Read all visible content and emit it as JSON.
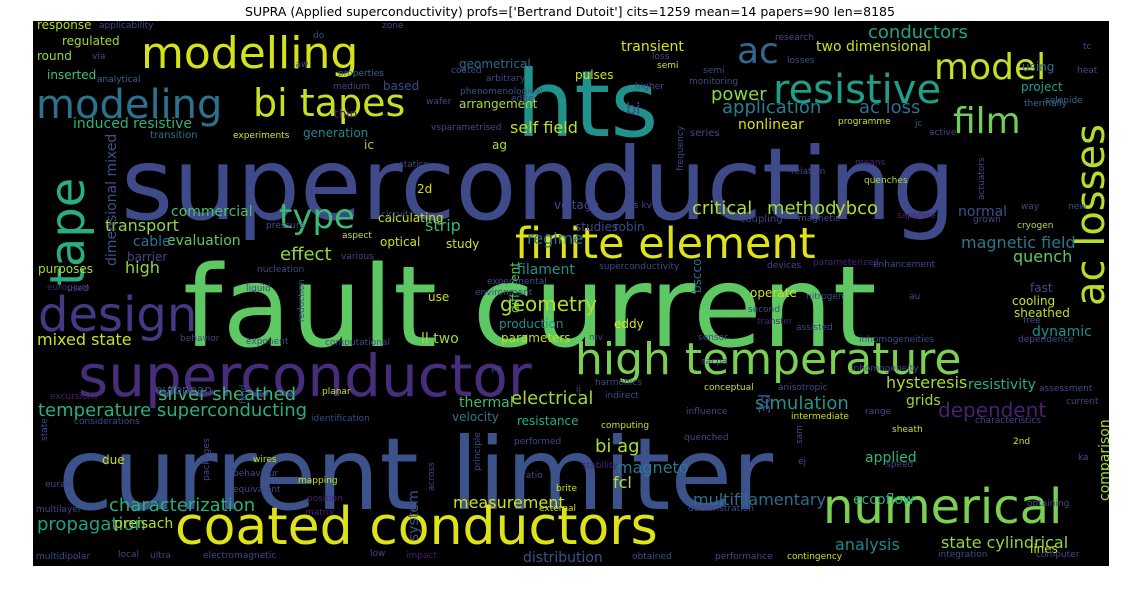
{
  "title": "SUPRA (Applied superconductivity) profs=['Bertrand Dutoit'] cits=1259 mean=14 papers=90 len=8185",
  "words": [
    {
      "text": "current limiter",
      "color": "#3b528b"
    },
    {
      "text": "fault current",
      "color": "#5ec962"
    },
    {
      "text": "superconducting",
      "color": "#3e4a89"
    },
    {
      "text": "hts",
      "color": "#21918c"
    },
    {
      "text": "coated conductors",
      "color": "#dde318"
    },
    {
      "text": "superconductor",
      "color": "#472d7b"
    },
    {
      "text": "high temperature",
      "color": "#7ad151"
    },
    {
      "text": "modelling",
      "color": "#d5e21a"
    },
    {
      "text": "resistive",
      "color": "#1f9e89"
    },
    {
      "text": "finite element",
      "color": "#dde318"
    },
    {
      "text": "modeling",
      "color": "#2c728e"
    },
    {
      "text": "numerical",
      "color": "#7ad151"
    },
    {
      "text": "bi tapes",
      "color": "#c8e020"
    },
    {
      "text": "tape",
      "color": "#28ae80"
    },
    {
      "text": "design",
      "color": "#443983"
    },
    {
      "text": "ac losses",
      "color": "#b5de2b"
    },
    {
      "text": "model",
      "color": "#c2df23"
    },
    {
      "text": "film",
      "color": "#6ece58"
    },
    {
      "text": "ac",
      "color": "#31688e"
    },
    {
      "text": "type",
      "color": "#3bbb75"
    },
    {
      "text": "temperature superconducting",
      "color": "#29af7f"
    },
    {
      "text": "critical",
      "color": "#b5de2b"
    },
    {
      "text": "method",
      "color": "#9fda3a"
    },
    {
      "text": "ybco",
      "color": "#b8de29"
    },
    {
      "text": "effect",
      "color": "#90d743"
    },
    {
      "text": "magnetic field",
      "color": "#2a788e"
    },
    {
      "text": "simulation",
      "color": "#1f958b"
    },
    {
      "text": "dependent",
      "color": "#482173"
    },
    {
      "text": "application",
      "color": "#277f8e"
    },
    {
      "text": "ac loss",
      "color": "#2e6f8e"
    },
    {
      "text": "power",
      "color": "#8bd646"
    },
    {
      "text": "conductors",
      "color": "#21a685"
    },
    {
      "text": "geometry",
      "color": "#b2dd2d"
    },
    {
      "text": "electrical",
      "color": "#a0da39"
    },
    {
      "text": "characterization",
      "color": "#29af7f"
    },
    {
      "text": "propagation",
      "color": "#1fa088"
    },
    {
      "text": "coupling",
      "color": "#404688"
    },
    {
      "text": "hysteresis",
      "color": "#a8db34"
    },
    {
      "text": "silver sheathed",
      "color": "#37b878"
    },
    {
      "text": "state cylindrical",
      "color": "#8ed645"
    },
    {
      "text": "analysis",
      "color": "#24868e"
    },
    {
      "text": "magneto",
      "color": "#2a788e"
    },
    {
      "text": "bi ag",
      "color": "#aadc32"
    },
    {
      "text": "measurement",
      "color": "#d0e11c"
    },
    {
      "text": "multifilamentary",
      "color": "#2e6e8e"
    },
    {
      "text": "mixed state",
      "color": "#c5e021"
    },
    {
      "text": "eccoflow",
      "color": "#25ac82"
    },
    {
      "text": "comparison",
      "color": "#a8db34"
    },
    {
      "text": "self field",
      "color": "#c2df23"
    },
    {
      "text": "transport",
      "color": "#90d743"
    },
    {
      "text": "regime",
      "color": "#2c728e"
    },
    {
      "text": "strip",
      "color": "#35b779"
    },
    {
      "text": "quench",
      "color": "#5ec962"
    },
    {
      "text": "filament",
      "color": "#20928c"
    },
    {
      "text": "induced resistive",
      "color": "#2fb47c"
    },
    {
      "text": "two dimensional",
      "color": "#c5e021"
    },
    {
      "text": "nonlinear",
      "color": "#d8e219"
    },
    {
      "text": "resistivity",
      "color": "#2ab07f"
    },
    {
      "text": "dimensional mixed",
      "color": "#3b528b"
    },
    {
      "text": "high",
      "color": "#8ed645"
    },
    {
      "text": "commercial",
      "color": "#4ac16d"
    },
    {
      "text": "evaluation",
      "color": "#5ec962"
    },
    {
      "text": "cable",
      "color": "#2c728e"
    },
    {
      "text": "barrier",
      "color": "#3e4989"
    },
    {
      "text": "system",
      "color": "#3b528b"
    },
    {
      "text": "thermal",
      "color": "#3dbc74"
    },
    {
      "text": "fcl",
      "color": "#b5de2b"
    },
    {
      "text": "normal",
      "color": "#3b528b"
    },
    {
      "text": "grids",
      "color": "#9bd93c"
    },
    {
      "text": "bscco",
      "color": "#2d718e"
    },
    {
      "text": "different",
      "color": "#5ec962"
    },
    {
      "text": "applied",
      "color": "#2fb47c"
    },
    {
      "text": "dynamic",
      "color": "#21918c"
    },
    {
      "text": "sheathed",
      "color": "#c0df25"
    },
    {
      "text": "preisach",
      "color": "#b5de2b"
    },
    {
      "text": "transient",
      "color": "#d8e219"
    },
    {
      "text": "ll two",
      "color": "#9dd93b"
    },
    {
      "text": "velocity",
      "color": "#2a788e"
    },
    {
      "text": "resistance",
      "color": "#27ad81"
    },
    {
      "text": "distribution",
      "color": "#3b528b"
    },
    {
      "text": "analytical",
      "color": "#31688e"
    },
    {
      "text": "eddy",
      "color": "#dde318"
    },
    {
      "text": "production",
      "color": "#21918c"
    },
    {
      "text": "parameters",
      "color": "#bddf26"
    },
    {
      "text": "voltage",
      "color": "#3e4a89"
    },
    {
      "text": "calculating",
      "color": "#cae11f"
    },
    {
      "text": "response",
      "color": "#b5de2b"
    },
    {
      "text": "regulated",
      "color": "#a0da39"
    },
    {
      "text": "round",
      "color": "#95d840"
    },
    {
      "text": "inserted",
      "color": "#44bf70"
    },
    {
      "text": "geometrical",
      "color": "#31688e"
    },
    {
      "text": "arbitrary",
      "color": "#3e4a89"
    },
    {
      "text": "phenomenological",
      "color": "#3b528b"
    },
    {
      "text": "pulses",
      "color": "#d0e11c"
    },
    {
      "text": "arrangement",
      "color": "#a8db34"
    },
    {
      "text": "properties",
      "color": "#31688e"
    },
    {
      "text": "based",
      "color": "#3e4a89"
    },
    {
      "text": "medium",
      "color": "#404688"
    },
    {
      "text": "wafer",
      "color": "#3e4a89"
    },
    {
      "text": "edge",
      "color": "#3e4a89"
    },
    {
      "text": "thin",
      "color": "#481f70"
    },
    {
      "text": "transition",
      "color": "#2c728e"
    },
    {
      "text": "experiments",
      "color": "#d8e219"
    },
    {
      "text": "generation",
      "color": "#25858e"
    },
    {
      "text": "ic",
      "color": "#a8db34"
    },
    {
      "text": "2d",
      "color": "#c8e020"
    },
    {
      "text": "ag",
      "color": "#aadc32"
    },
    {
      "text": "series",
      "color": "#3e4a89"
    },
    {
      "text": "vsparametrised",
      "color": "#3e4a89"
    },
    {
      "text": "higher",
      "color": "#3e4a89"
    },
    {
      "text": "semi",
      "color": "#d8e219"
    },
    {
      "text": "loss",
      "color": "#3e4a89"
    },
    {
      "text": "bi",
      "color": "#3e4a89"
    },
    {
      "text": "monitoring",
      "color": "#3e4a89"
    },
    {
      "text": "research",
      "color": "#3e4a89"
    },
    {
      "text": "losses",
      "color": "#3e4a89"
    },
    {
      "text": "programme",
      "color": "#c8e020"
    },
    {
      "text": "jc",
      "color": "#3e4a89"
    },
    {
      "text": "using",
      "color": "#2c728e"
    },
    {
      "text": "project",
      "color": "#1f9e89"
    },
    {
      "text": "thermally",
      "color": "#31688e"
    },
    {
      "text": "selenide",
      "color": "#31688e"
    },
    {
      "text": "heat",
      "color": "#3e4a89"
    },
    {
      "text": "tc",
      "color": "#3e4a89"
    },
    {
      "text": "active",
      "color": "#3e4a89"
    },
    {
      "text": "frequency",
      "color": "#3e4a89"
    },
    {
      "text": "relation",
      "color": "#3e4a89"
    },
    {
      "text": "means",
      "color": "#482173"
    },
    {
      "text": "quenches",
      "color": "#a8db34"
    },
    {
      "text": "actuators",
      "color": "#3e4a89"
    },
    {
      "text": "cryogen",
      "color": "#b5de2b"
    },
    {
      "text": "grown",
      "color": "#3e4a89"
    },
    {
      "text": "sapphire",
      "color": "#482173"
    },
    {
      "text": "magnetic",
      "color": "#3e4a89"
    },
    {
      "text": "way",
      "color": "#3e4a89"
    },
    {
      "text": "new",
      "color": "#3e4a89"
    },
    {
      "text": "ccs kv",
      "color": "#3e4a89"
    },
    {
      "text": "statics",
      "color": "#3e4a89"
    },
    {
      "text": "circuit",
      "color": "#3e4a89"
    },
    {
      "text": "pressure",
      "color": "#3e4a89"
    },
    {
      "text": "optical",
      "color": "#d0e11c"
    },
    {
      "text": "aspect",
      "color": "#c8e020"
    },
    {
      "text": "studies",
      "color": "#3e4a89"
    },
    {
      "text": "robin",
      "color": "#3e4a89"
    },
    {
      "text": "study",
      "color": "#d0e11c"
    },
    {
      "text": "various",
      "color": "#3e4a89"
    },
    {
      "text": "nucleation",
      "color": "#3e4a89"
    },
    {
      "text": "superconductivity",
      "color": "#3e4a89"
    },
    {
      "text": "devices",
      "color": "#3e4a89"
    },
    {
      "text": "parameterized",
      "color": "#482173"
    },
    {
      "text": "enhancement",
      "color": "#3e4a89"
    },
    {
      "text": "purposes",
      "color": "#aadc32"
    },
    {
      "text": "europium",
      "color": "#482173"
    },
    {
      "text": "liquid",
      "color": "#3e4a89"
    },
    {
      "text": "environment",
      "color": "#3e4a89"
    },
    {
      "text": "experimental",
      "color": "#3e4a89"
    },
    {
      "text": "used",
      "color": "#3e4a89"
    },
    {
      "text": "reduction",
      "color": "#3e4a89"
    },
    {
      "text": "use",
      "color": "#c8e020"
    },
    {
      "text": "operate",
      "color": "#c8e020"
    },
    {
      "text": "second",
      "color": "#3e4a89"
    },
    {
      "text": "transfer",
      "color": "#482173"
    },
    {
      "text": "nitrogen",
      "color": "#3e4a89"
    },
    {
      "text": "au",
      "color": "#3e4a89"
    },
    {
      "text": "fast",
      "color": "#3e4a89"
    },
    {
      "text": "cooling",
      "color": "#c8e020"
    },
    {
      "text": "free",
      "color": "#3e4a89"
    },
    {
      "text": "behavior",
      "color": "#3e4a89"
    },
    {
      "text": "exponent",
      "color": "#3e4a89"
    },
    {
      "text": "computational",
      "color": "#3e4a89"
    },
    {
      "text": "mv",
      "color": "#3e4a89"
    },
    {
      "text": "sensor",
      "color": "#3e4a89"
    },
    {
      "text": "assisted",
      "color": "#3e4a89"
    },
    {
      "text": "inhomogeneities",
      "color": "#3e4a89"
    },
    {
      "text": "dependence",
      "color": "#3e4a89"
    },
    {
      "text": "inhomogeneity",
      "color": "#3e4a89"
    },
    {
      "text": "sacpa",
      "color": "#3e4a89"
    },
    {
      "text": "european",
      "color": "#3e4a89"
    },
    {
      "text": "conceptual",
      "color": "#c8e020"
    },
    {
      "text": "anisotropic",
      "color": "#3e4a89"
    },
    {
      "text": "harmonics",
      "color": "#3e4a89"
    },
    {
      "text": "indirect",
      "color": "#3e4a89"
    },
    {
      "text": "planar",
      "color": "#c8e020"
    },
    {
      "text": "assessment",
      "color": "#3e4a89"
    },
    {
      "text": "current",
      "color": "#3e4a89"
    },
    {
      "text": "excursions",
      "color": "#482173"
    },
    {
      "text": "considerations",
      "color": "#3e4a89"
    },
    {
      "text": "identification",
      "color": "#3e4a89"
    },
    {
      "text": "influence",
      "color": "#3e4a89"
    },
    {
      "text": "computing",
      "color": "#c8e020"
    },
    {
      "text": "intermediate",
      "color": "#c8e020"
    },
    {
      "text": "range",
      "color": "#3e4a89"
    },
    {
      "text": "sheath",
      "color": "#c8e020"
    },
    {
      "text": "characteristics",
      "color": "#3e4a89"
    },
    {
      "text": "performed",
      "color": "#3e4a89"
    },
    {
      "text": "quenched",
      "color": "#3e4a89"
    },
    {
      "text": "sam",
      "color": "#3e4a89"
    },
    {
      "text": "speed",
      "color": "#3e4a89"
    },
    {
      "text": "2nd",
      "color": "#c8e020"
    },
    {
      "text": "ka",
      "color": "#3e4a89"
    },
    {
      "text": "due",
      "color": "#c8e020"
    },
    {
      "text": "wires",
      "color": "#c8e020"
    },
    {
      "text": "packages",
      "color": "#3e4a89"
    },
    {
      "text": "behaviour",
      "color": "#3e4a89"
    },
    {
      "text": "ratio",
      "color": "#3e4a89"
    },
    {
      "text": "stability",
      "color": "#482173"
    },
    {
      "text": "ej",
      "color": "#3e4a89"
    },
    {
      "text": "euram",
      "color": "#3e4a89"
    },
    {
      "text": "equivalent",
      "color": "#3e4a89"
    },
    {
      "text": "mapping",
      "color": "#c8e020"
    },
    {
      "text": "brite",
      "color": "#c8e020"
    },
    {
      "text": "multilayer",
      "color": "#3e4a89"
    },
    {
      "text": "position",
      "color": "#482173"
    },
    {
      "text": "matrix",
      "color": "#482173"
    },
    {
      "text": "external",
      "color": "#c8e020"
    },
    {
      "text": "demonstration",
      "color": "#3e4a89"
    },
    {
      "text": "multidipolar",
      "color": "#3e4a89"
    },
    {
      "text": "local",
      "color": "#3e4a89"
    },
    {
      "text": "ultra",
      "color": "#3e4a89"
    },
    {
      "text": "electromagnetic",
      "color": "#3e4a89"
    },
    {
      "text": "low",
      "color": "#3e4a89"
    },
    {
      "text": "impact",
      "color": "#482173"
    },
    {
      "text": "obtained",
      "color": "#3e4a89"
    },
    {
      "text": "performance",
      "color": "#3e4a89"
    },
    {
      "text": "contingency",
      "color": "#c8e020"
    },
    {
      "text": "integration",
      "color": "#3e4a89"
    },
    {
      "text": "lines",
      "color": "#c8e020"
    },
    {
      "text": "obtaining",
      "color": "#3e4a89"
    },
    {
      "text": "computer",
      "color": "#3e4a89"
    },
    {
      "text": "state",
      "color": "#3e4a89"
    },
    {
      "text": "field",
      "color": "#3e4a89"
    },
    {
      "text": "across",
      "color": "#3e4a89"
    },
    {
      "text": "principle",
      "color": "#3e4a89"
    },
    {
      "text": "law",
      "color": "#3e4a89"
    },
    {
      "text": "coated",
      "color": "#3e4a89"
    },
    {
      "text": "via",
      "color": "#3e4a89"
    },
    {
      "text": "applicability",
      "color": "#3e4a89"
    },
    {
      "text": "zone",
      "color": "#3e4a89"
    },
    {
      "text": "do",
      "color": "#3e4a89"
    },
    {
      "text": "semi",
      "color": "#3e4a89"
    },
    {
      "text": "3d",
      "color": "#3e4a89"
    },
    {
      "text": "pe",
      "color": "#3e4a89"
    },
    {
      "text": "ij",
      "color": "#3e4a89"
    }
  ]
}
